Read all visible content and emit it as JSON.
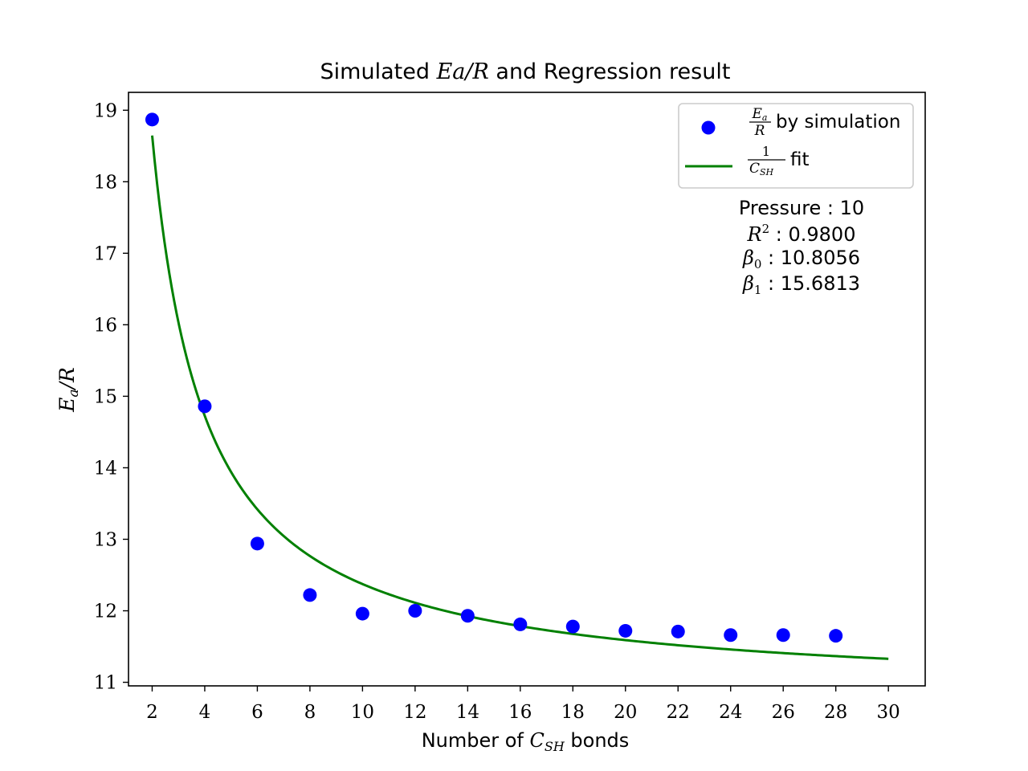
{
  "chart_data": {
    "type": "scatter",
    "title_parts": {
      "prefix": "Simulated ",
      "math": "Ea/R",
      "suffix": " and Regression result"
    },
    "xlabel_parts": {
      "prefix": "Number of ",
      "math_base": "C",
      "math_sub": "SH",
      "suffix": " bonds"
    },
    "ylabel_parts": {
      "math_base": "E",
      "math_sub": "a",
      "math_rest": "/R"
    },
    "xlim": [
      1.1,
      31.4
    ],
    "ylim": [
      10.95,
      19.25
    ],
    "xticks": [
      2,
      4,
      6,
      8,
      10,
      12,
      14,
      16,
      18,
      20,
      22,
      24,
      26,
      28,
      30
    ],
    "yticks": [
      11,
      12,
      13,
      14,
      15,
      16,
      17,
      18,
      19
    ],
    "grid": false,
    "legend_position": "top-right",
    "series": [
      {
        "kind": "scatter",
        "color": "#0000ff",
        "x": [
          2,
          4,
          6,
          8,
          10,
          12,
          14,
          16,
          18,
          20,
          22,
          24,
          26,
          28
        ],
        "y": [
          18.87,
          14.86,
          12.94,
          12.22,
          11.96,
          12.0,
          11.93,
          11.81,
          11.78,
          11.72,
          11.71,
          11.66,
          11.66,
          11.65
        ]
      },
      {
        "kind": "line",
        "color": "#008000",
        "function": "beta0 + beta1 / x",
        "x_range": [
          2,
          30
        ]
      }
    ],
    "legend": [
      {
        "frac_num": "E",
        "frac_num_sub": "a",
        "frac_den": "R",
        "text": " by simulation"
      },
      {
        "frac_num": "1",
        "frac_den": "C",
        "frac_den_sub": "SH",
        "text": " fit"
      }
    ],
    "annotation": {
      "pressure_label": "Pressure : ",
      "pressure_value": "10",
      "r2_math": "R",
      "r2_sup": "2",
      "r2_sep": " : ",
      "r2_value": "0.9800",
      "b0_math": "β",
      "b0_sub": "0",
      "b0_sep": " : ",
      "b0_value": "10.8056",
      "b1_math": "β",
      "b1_sub": "1",
      "b1_sep": " : ",
      "b1_value": "15.6813"
    },
    "beta0": 10.8056,
    "beta1": 15.6813
  }
}
